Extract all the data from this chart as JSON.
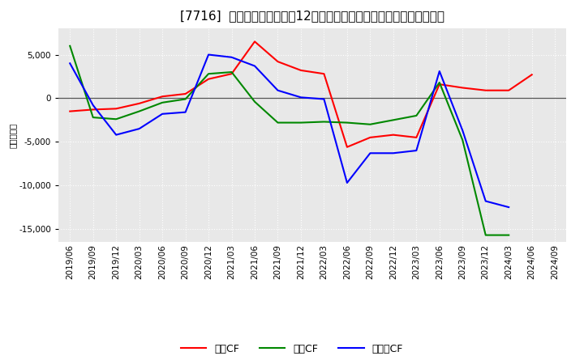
{
  "title": "[7716]  キャッシュフローの12か月移動合計の対前年同期増減額の推移",
  "ylabel": "（百万円）",
  "background_color": "#ffffff",
  "plot_bg_color": "#e8e8e8",
  "grid_color": "#ffffff",
  "ylim": [
    -16500,
    8000
  ],
  "yticks": [
    -15000,
    -10000,
    -5000,
    0,
    5000
  ],
  "dates": [
    "2019/06",
    "2019/09",
    "2019/12",
    "2020/03",
    "2020/06",
    "2020/09",
    "2020/12",
    "2021/03",
    "2021/06",
    "2021/09",
    "2021/12",
    "2022/03",
    "2022/06",
    "2022/09",
    "2022/12",
    "2023/03",
    "2023/06",
    "2023/09",
    "2023/12",
    "2024/03",
    "2024/06",
    "2024/09"
  ],
  "eigyo_cf": [
    -1500,
    -1300,
    -1200,
    -600,
    200,
    500,
    2200,
    2800,
    6500,
    4200,
    3200,
    2800,
    -5600,
    -4500,
    -4200,
    -4500,
    1600,
    1200,
    900,
    900,
    2700,
    null
  ],
  "toshi_cf": [
    6000,
    -2200,
    -2400,
    -1500,
    -500,
    -100,
    2800,
    3000,
    -400,
    -2800,
    -2800,
    -2700,
    -2800,
    -3000,
    -2500,
    -2000,
    1800,
    -4800,
    -15700,
    -15700,
    null,
    null
  ],
  "free_cf": [
    4000,
    -800,
    -4200,
    -3500,
    -1800,
    -1600,
    5000,
    4700,
    3700,
    900,
    100,
    -100,
    -9700,
    -6300,
    -6300,
    -6000,
    3100,
    -3700,
    -11800,
    -12500,
    null,
    null
  ],
  "series_colors": {
    "eigyo": "#ff0000",
    "toshi": "#008800",
    "free": "#0000ff"
  },
  "legend_labels": {
    "eigyo": "営業CF",
    "toshi": "投資CF",
    "free": "フリーCF"
  },
  "title_fontsize": 11,
  "axis_fontsize": 7.5,
  "legend_fontsize": 9
}
